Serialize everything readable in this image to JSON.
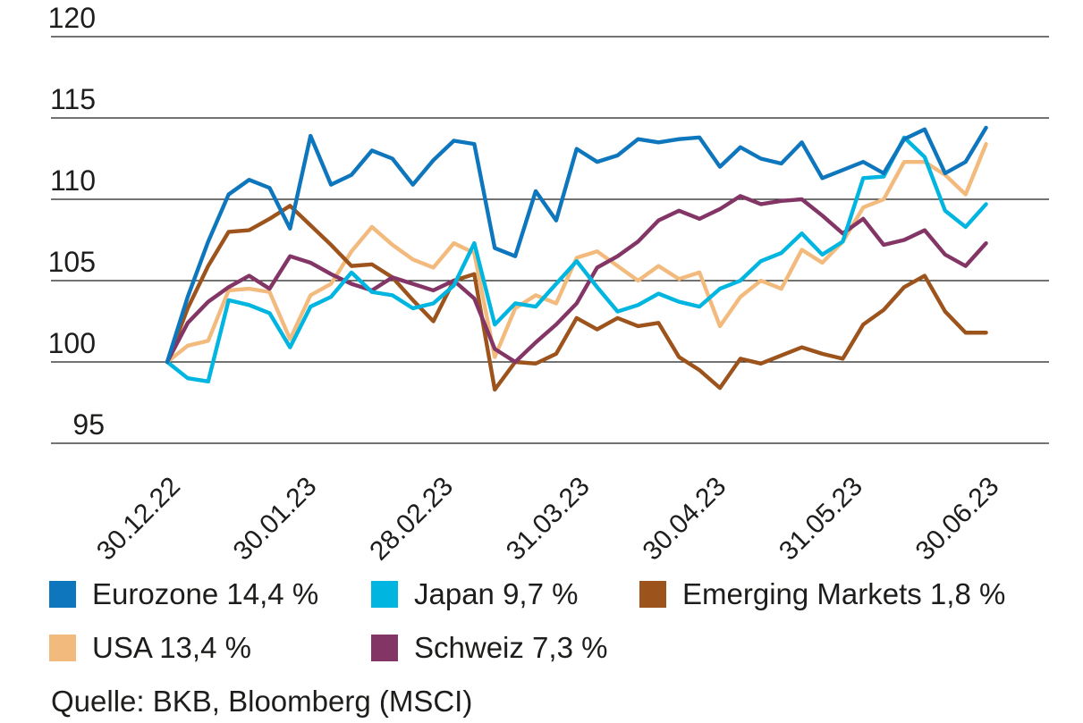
{
  "source": "Quelle: BKB, Bloomberg (MSCI)",
  "chart_data": {
    "type": "line",
    "title": "",
    "grid": "horizontal",
    "legend_position": "bottom",
    "x_tick_labels": [
      "30.12.22",
      "30.01.23",
      "28.02.23",
      "31.03.23",
      "30.04.23",
      "31.05.23",
      "30.06.23"
    ],
    "y_ticks": [
      95,
      100,
      105,
      110,
      115,
      120
    ],
    "ylim": [
      93.5,
      121
    ],
    "x_months": [
      0,
      0.15,
      0.3,
      0.45,
      0.6,
      0.75,
      0.9,
      1.05,
      1.2,
      1.35,
      1.5,
      1.65,
      1.8,
      1.95,
      2.1,
      2.25,
      2.4,
      2.55,
      2.7,
      2.85,
      3,
      3.15,
      3.3,
      3.45,
      3.6,
      3.75,
      3.9,
      4.05,
      4.2,
      4.35,
      4.5,
      4.65,
      4.8,
      4.95,
      5.1,
      5.25,
      5.4,
      5.55,
      5.7,
      5.85,
      6
    ],
    "series": [
      {
        "name": "USA",
        "color": "#f3ba7d",
        "final_performance": "13,4 %",
        "values": [
          100,
          101,
          101.3,
          104.4,
          104.5,
          104.3,
          101.4,
          104.1,
          104.8,
          106.8,
          108.3,
          107.2,
          106.3,
          105.8,
          107.3,
          106.7,
          100.3,
          103.3,
          104.1,
          103.6,
          106.4,
          106.8,
          105.9,
          105,
          105.9,
          105.1,
          105.5,
          102.2,
          104,
          105,
          104.5,
          106.9,
          106.1,
          107.4,
          109.5,
          110,
          112.3,
          112.3,
          111.5,
          110.3,
          113.4
        ]
      },
      {
        "name": "Emerging Markets",
        "color": "#9d531c",
        "final_performance": "1,8 %",
        "values": [
          100,
          103.3,
          105.9,
          108,
          108.1,
          108.8,
          109.6,
          108.4,
          107.2,
          105.9,
          106,
          105.2,
          103.8,
          102.5,
          105,
          105.4,
          98.3,
          100,
          99.9,
          100.5,
          102.7,
          102,
          102.7,
          102.2,
          102.4,
          100.3,
          99.5,
          98.4,
          100.2,
          99.9,
          100.4,
          100.9,
          100.5,
          100.2,
          102.3,
          103.2,
          104.6,
          105.3,
          103.1,
          101.8,
          101.8
        ]
      },
      {
        "name": "Schweiz",
        "color": "#833566",
        "final_performance": "7,3 %",
        "values": [
          100,
          102.4,
          103.7,
          104.6,
          105.3,
          104.5,
          106.5,
          106.1,
          105.4,
          104.8,
          104.4,
          105.2,
          104.8,
          104.4,
          105,
          103.9,
          100.8,
          100,
          101.2,
          102.3,
          103.6,
          105.8,
          106.5,
          107.4,
          108.7,
          109.3,
          108.8,
          109.4,
          110.2,
          109.7,
          109.9,
          110,
          109,
          107.9,
          108.8,
          107.2,
          107.5,
          108.1,
          106.6,
          105.9,
          107.3
        ]
      },
      {
        "name": "Japan",
        "color": "#00b6e0",
        "final_performance": "9,7 %",
        "values": [
          100,
          99,
          98.8,
          103.8,
          103.5,
          103,
          100.9,
          103.4,
          104,
          105.5,
          104.3,
          104.1,
          103.3,
          103.6,
          104.7,
          107.3,
          102.3,
          103.6,
          103.4,
          104.8,
          106.2,
          104.6,
          103.1,
          103.5,
          104.2,
          103.7,
          103.4,
          104.5,
          105,
          106.2,
          106.7,
          107.9,
          106.6,
          107.4,
          111.3,
          111.4,
          113.8,
          112.6,
          109.3,
          108.3,
          109.7
        ]
      },
      {
        "name": "Eurozone",
        "color": "#0e76bd",
        "final_performance": "14,4 %",
        "values": [
          100,
          104,
          107.4,
          110.3,
          111.2,
          110.7,
          108.2,
          113.9,
          110.9,
          111.5,
          113,
          112.5,
          110.9,
          112.4,
          113.6,
          113.4,
          107,
          106.5,
          110.5,
          108.7,
          113.1,
          112.3,
          112.7,
          113.7,
          113.5,
          113.7,
          113.8,
          112,
          113.2,
          112.5,
          112.2,
          113.5,
          111.3,
          111.8,
          112.3,
          111.6,
          113.7,
          114.3,
          111.6,
          112.3,
          114.4
        ]
      }
    ]
  },
  "legend": {
    "items": [
      {
        "label": "Eurozone 14,4 %",
        "series": 4,
        "col": 0,
        "row": 0
      },
      {
        "label": "Japan 9,7 %",
        "series": 3,
        "col": 1,
        "row": 0
      },
      {
        "label": "Emerging Markets 1,8 %",
        "series": 1,
        "col": 2,
        "row": 0
      },
      {
        "label": "USA 13,4 %",
        "series": 0,
        "col": 0,
        "row": 1
      },
      {
        "label": "Schweiz 7,3 %",
        "series": 2,
        "col": 1,
        "row": 1
      }
    ]
  }
}
